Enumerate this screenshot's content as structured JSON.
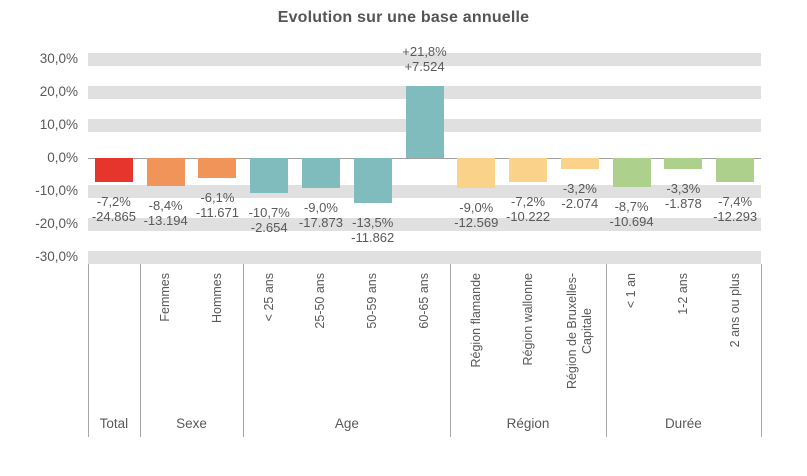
{
  "title": "Evolution sur une base annuelle",
  "chart_data": {
    "type": "bar",
    "title": "Evolution sur une base annuelle",
    "ylabel": "",
    "xlabel": "",
    "ylim": [
      -30,
      30
    ],
    "grid": "horizontal-bands",
    "legend": "none",
    "y_axis_ticks": [
      {
        "value": 30,
        "label": "30,0%"
      },
      {
        "value": 20,
        "label": "20,0%"
      },
      {
        "value": 10,
        "label": "10,0%"
      },
      {
        "value": 0,
        "label": "0,0%"
      },
      {
        "value": -10,
        "label": "-10,0%"
      },
      {
        "value": -20,
        "label": "-20,0%"
      },
      {
        "value": -30,
        "label": "-30,0%"
      }
    ],
    "groups": [
      {
        "label": "Total",
        "color": "#E6352C",
        "bars": [
          {
            "category_lines": [],
            "pct": -7.2,
            "pct_label": "-7,2%",
            "value_label": "-24.865"
          }
        ]
      },
      {
        "label": "Sexe",
        "color": "#F0945A",
        "bars": [
          {
            "category_lines": [
              "Femmes"
            ],
            "pct": -8.4,
            "pct_label": "-8,4%",
            "value_label": "-13.194"
          },
          {
            "category_lines": [
              "Hommes"
            ],
            "pct": -6.1,
            "pct_label": "-6,1%",
            "value_label": "-11.671"
          }
        ]
      },
      {
        "label": "Age",
        "color": "#80BCBD",
        "bars": [
          {
            "category_lines": [
              "< 25 ans"
            ],
            "pct": -10.7,
            "pct_label": "-10,7%",
            "value_label": "-2.654"
          },
          {
            "category_lines": [
              "25-50 ans"
            ],
            "pct": -9.0,
            "pct_label": "-9,0%",
            "value_label": "-17.873"
          },
          {
            "category_lines": [
              "50-59 ans"
            ],
            "pct": -13.5,
            "pct_label": "-13,5%",
            "value_label": "-11.862"
          },
          {
            "category_lines": [
              "60-65 ans"
            ],
            "pct": 21.8,
            "pct_label": "+21,8%",
            "value_label": "+7.524"
          }
        ]
      },
      {
        "label": "Région",
        "color": "#FAD289",
        "bars": [
          {
            "category_lines": [
              "Région flamande"
            ],
            "pct": -9.0,
            "pct_label": "-9,0%",
            "value_label": "-12.569"
          },
          {
            "category_lines": [
              "Région wallonne"
            ],
            "pct": -7.2,
            "pct_label": "-7,2%",
            "value_label": "-10.222"
          },
          {
            "category_lines": [
              "Région de Bruxelles-",
              "Capitale"
            ],
            "pct": -3.2,
            "pct_label": "-3,2%",
            "value_label": "-2.074"
          }
        ]
      },
      {
        "label": "Durée",
        "color": "#AED08D",
        "bars": [
          {
            "category_lines": [
              "< 1 an"
            ],
            "pct": -8.7,
            "pct_label": "-8,7%",
            "value_label": "-10.694"
          },
          {
            "category_lines": [
              "1-2 ans"
            ],
            "pct": -3.3,
            "pct_label": "-3,3%",
            "value_label": "-1.878"
          },
          {
            "category_lines": [
              "2 ans ou plus"
            ],
            "pct": -7.4,
            "pct_label": "-7,4%",
            "value_label": "-12.293"
          }
        ]
      }
    ],
    "colors": {
      "grid_band": "#E0E0E0",
      "zero_line": "#A0A0A0",
      "divider": "#A6A6A6",
      "text": "#595959",
      "title": "#555555"
    }
  }
}
